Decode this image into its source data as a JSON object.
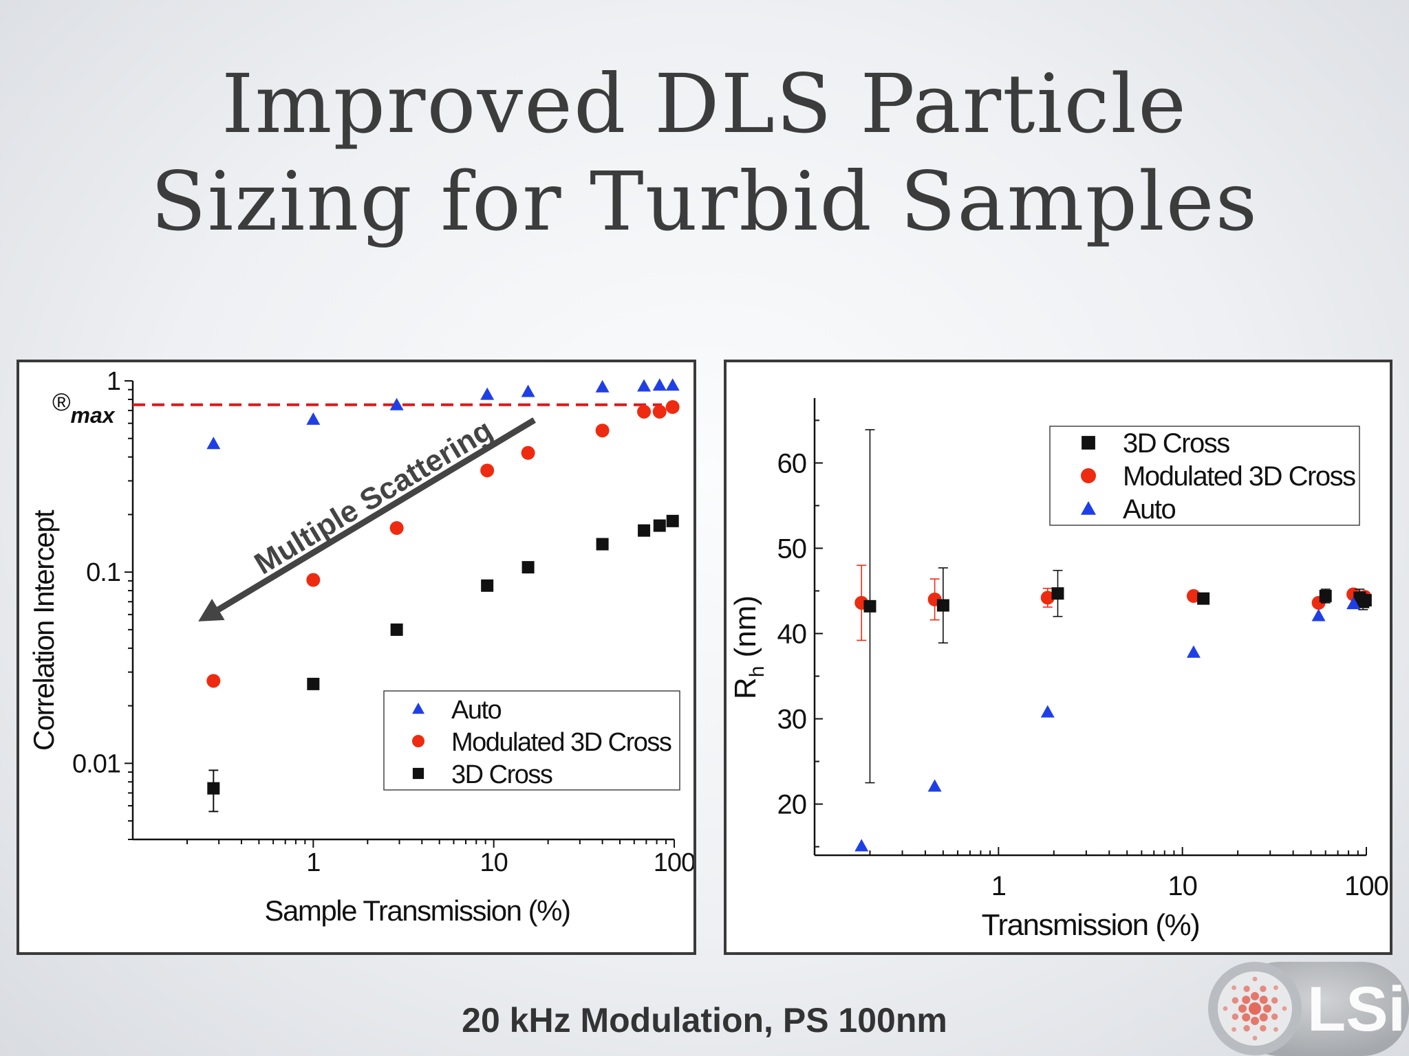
{
  "slide": {
    "title_line1": "Improved DLS Particle",
    "title_line2": "Sizing for Turbid Samples",
    "caption": "20 kHz Modulation, PS 100nm",
    "logo_text": "LSi"
  },
  "colors": {
    "auto": "#1f3fe6",
    "modulated": "#ee2b10",
    "cross3d": "#111111",
    "dashed_line": "#e01818",
    "arrow": "#444444"
  },
  "chart_data": [
    {
      "type": "scatter",
      "title": "",
      "xlabel": "Sample Transmission (%)",
      "ylabel": "Correlation Intercept",
      "xscale": "log",
      "yscale": "log",
      "xlim": [
        0.1,
        100
      ],
      "ylim": [
        0.004,
        1
      ],
      "xticks": [
        "1",
        "10",
        "100"
      ],
      "yticks": [
        "0.01",
        "0.1",
        "1"
      ],
      "reference_line": {
        "label": "®",
        "label_sub": "max",
        "y": 0.75,
        "style": "dashed"
      },
      "annotation": {
        "text": "Multiple Scattering",
        "arrow_from": [
          20,
          0.8
        ],
        "arrow_to": [
          0.3,
          0.06
        ]
      },
      "legend": {
        "position": "bottom-right"
      },
      "series": [
        {
          "name": "Auto",
          "marker": "triangle",
          "x": [
            0.28,
            1.0,
            2.9,
            9.2,
            15.5,
            40,
            68,
            83,
            98
          ],
          "y": [
            0.47,
            0.63,
            0.75,
            0.85,
            0.88,
            0.93,
            0.94,
            0.95,
            0.95
          ]
        },
        {
          "name": "Modulated 3D Cross",
          "marker": "circle",
          "x": [
            0.28,
            1.0,
            2.9,
            9.2,
            15.5,
            40,
            68,
            83,
            98
          ],
          "y": [
            0.027,
            0.091,
            0.17,
            0.34,
            0.42,
            0.55,
            0.69,
            0.69,
            0.73
          ]
        },
        {
          "name": "3D Cross",
          "marker": "square",
          "x": [
            0.28,
            1.0,
            2.9,
            9.2,
            15.5,
            40,
            68,
            83,
            98
          ],
          "y": [
            0.0074,
            0.026,
            0.05,
            0.085,
            0.106,
            0.14,
            0.165,
            0.175,
            0.185
          ],
          "error": [
            0.0018,
            0,
            0,
            0,
            0,
            0,
            0,
            0,
            0
          ]
        }
      ]
    },
    {
      "type": "scatter",
      "title": "",
      "xlabel": "Transmission (%)",
      "ylabel": "R",
      "ylabel_sub": "h",
      "ylabel_unit": " (nm)",
      "xscale": "log",
      "xlim": [
        0.1,
        100
      ],
      "ylim": [
        14,
        66
      ],
      "xticks": [
        "1",
        "10",
        "100"
      ],
      "yticks": [
        "20",
        "30",
        "40",
        "50",
        "60"
      ],
      "legend": {
        "position": "top-right"
      },
      "series": [
        {
          "name": "3D Cross",
          "marker": "square",
          "x": [
            0.2,
            0.5,
            2.1,
            13.0,
            60,
            92,
            96,
            99
          ],
          "y": [
            43.2,
            43.3,
            44.7,
            44.1,
            44.4,
            44.2,
            43.7,
            43.9
          ],
          "error": [
            20.7,
            4.4,
            2.7,
            0.4,
            0.8,
            1.0,
            0.9,
            0.6
          ]
        },
        {
          "name": "Modulated 3D Cross",
          "marker": "circle",
          "x": [
            0.18,
            0.45,
            1.85,
            11.5,
            55,
            85,
            94,
            98
          ],
          "y": [
            43.6,
            44.0,
            44.2,
            44.4,
            43.6,
            44.6,
            44.2,
            44.3
          ],
          "error": [
            4.4,
            2.4,
            1.1,
            0.5,
            0.5,
            0.5,
            0.5,
            0.5
          ]
        },
        {
          "name": "Auto",
          "marker": "triangle",
          "x": [
            0.18,
            0.45,
            1.85,
            11.5,
            55,
            85
          ],
          "y": [
            15.1,
            22.1,
            30.8,
            37.8,
            42.1,
            43.5
          ]
        }
      ]
    }
  ]
}
